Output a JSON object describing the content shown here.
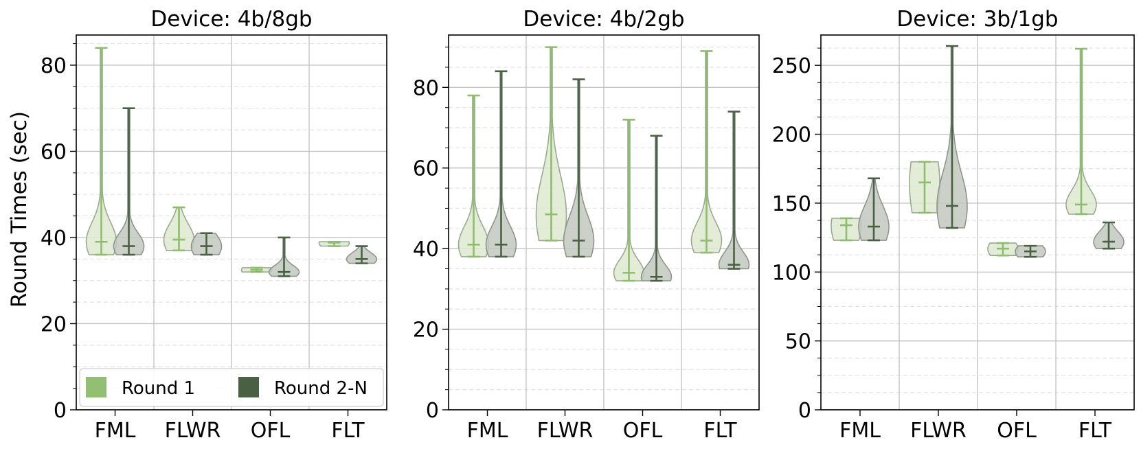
{
  "figure": {
    "ylabel": "Round Times (sec)",
    "legend": {
      "position": "bottom-left of first panel",
      "entries": [
        "Round 1",
        "Round 2-N"
      ]
    }
  },
  "colors": {
    "round1_fill": "#dde9cf",
    "round1_edge": "#9aaa90",
    "round1_line": "#8fbc6e",
    "round1_legend": "#93bf73",
    "roundN_fill": "#c2c9c0",
    "roundN_edge": "#8c968a",
    "roundN_line": "#4a6043",
    "roundN_legend": "#4a6043",
    "grid_major": "#c4c4c4",
    "grid_minor": "#e2e2e2"
  },
  "chart_data": [
    {
      "type": "violin",
      "title": "Device: 4b/8gb",
      "categories": [
        "FML",
        "FLWR",
        "OFL",
        "FLT"
      ],
      "ylim": [
        0,
        87
      ],
      "yticks": [
        0,
        20,
        40,
        60,
        80
      ],
      "series": [
        {
          "name": "Round 1",
          "stats": [
            {
              "min": 36,
              "median": 39,
              "max": 84
            },
            {
              "min": 37,
              "median": 39.5,
              "max": 47
            },
            {
              "min": 32,
              "median": 32.5,
              "max": 33
            },
            {
              "min": 38,
              "median": 38.8,
              "max": 39
            }
          ]
        },
        {
          "name": "Round 2-N",
          "stats": [
            {
              "min": 36,
              "median": 38,
              "max": 70
            },
            {
              "min": 36,
              "median": 38,
              "max": 41
            },
            {
              "min": 31,
              "median": 32,
              "max": 40
            },
            {
              "min": 34,
              "median": 35,
              "max": 38
            }
          ]
        }
      ]
    },
    {
      "type": "violin",
      "title": "Device: 4b/2gb",
      "categories": [
        "FML",
        "FLWR",
        "OFL",
        "FLT"
      ],
      "ylim": [
        0,
        93
      ],
      "yticks": [
        0,
        20,
        40,
        60,
        80
      ],
      "series": [
        {
          "name": "Round 1",
          "stats": [
            {
              "min": 38,
              "median": 41,
              "max": 78
            },
            {
              "min": 42,
              "median": 48.5,
              "max": 90
            },
            {
              "min": 32,
              "median": 34,
              "max": 72
            },
            {
              "min": 39,
              "median": 42,
              "max": 89
            }
          ]
        },
        {
          "name": "Round 2-N",
          "stats": [
            {
              "min": 38,
              "median": 41,
              "max": 84
            },
            {
              "min": 38,
              "median": 42,
              "max": 82
            },
            {
              "min": 32,
              "median": 33,
              "max": 68
            },
            {
              "min": 35,
              "median": 36,
              "max": 74
            }
          ]
        }
      ]
    },
    {
      "type": "violin",
      "title": "Device: 3b/1gb",
      "categories": [
        "FML",
        "FLWR",
        "OFL",
        "FLT"
      ],
      "ylim": [
        0,
        272
      ],
      "yticks": [
        0,
        50,
        100,
        150,
        200,
        250
      ],
      "series": [
        {
          "name": "Round 1",
          "stats": [
            {
              "min": 123,
              "median": 134,
              "max": 139
            },
            {
              "min": 143,
              "median": 165,
              "max": 180
            },
            {
              "min": 112,
              "median": 117,
              "max": 121
            },
            {
              "min": 142,
              "median": 149,
              "max": 262
            }
          ]
        },
        {
          "name": "Round 2-N",
          "stats": [
            {
              "min": 123,
              "median": 133,
              "max": 168
            },
            {
              "min": 132,
              "median": 148,
              "max": 264
            },
            {
              "min": 111,
              "median": 115,
              "max": 119
            },
            {
              "min": 117,
              "median": 122,
              "max": 136
            }
          ]
        }
      ]
    }
  ]
}
